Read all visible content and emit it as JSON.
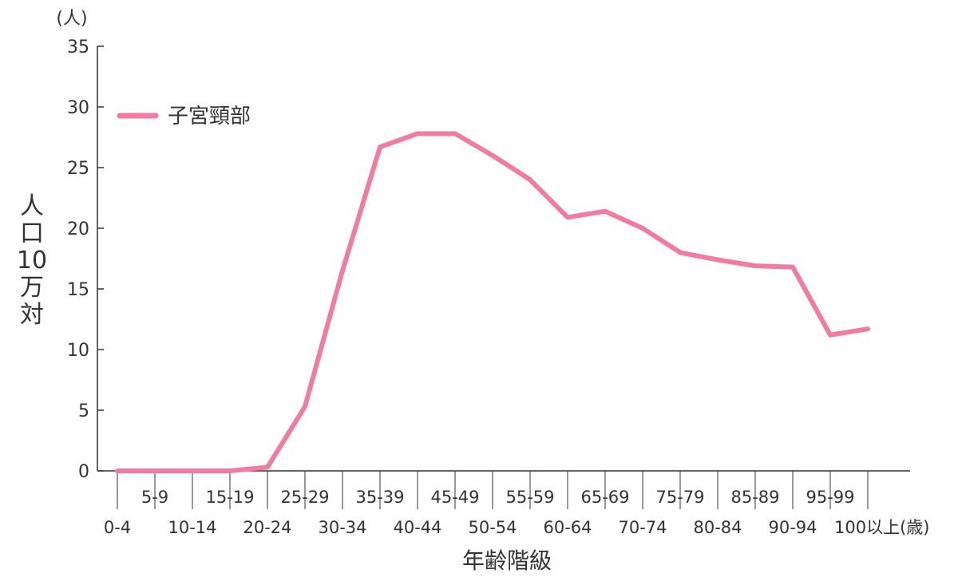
{
  "chart_data": {
    "type": "line",
    "y_unit": "(人)",
    "x_unit": "(歳)",
    "ylabel": "人口10万対",
    "xlabel": "年齢階級",
    "ylim": [
      0,
      35
    ],
    "yticks": [
      "0",
      "5",
      "10",
      "15",
      "20",
      "25",
      "30",
      "35"
    ],
    "categories": [
      "0-4",
      "5-9",
      "10-14",
      "15-19",
      "20-24",
      "25-29",
      "30-34",
      "35-39",
      "40-44",
      "45-49",
      "50-54",
      "55-59",
      "60-64",
      "65-69",
      "70-74",
      "75-79",
      "80-84",
      "85-89",
      "90-94",
      "95-99",
      "100以上"
    ],
    "series": [
      {
        "name": "子宮頸部",
        "color": "#f07ca0",
        "values": [
          0,
          0,
          0,
          0,
          0.3,
          5.3,
          16.5,
          26.7,
          27.8,
          27.8,
          26.0,
          24.0,
          20.9,
          21.4,
          20.0,
          18.0,
          17.4,
          16.9,
          16.8,
          11.2,
          11.7
        ]
      }
    ],
    "legend_position": "top-left",
    "grid": false
  }
}
